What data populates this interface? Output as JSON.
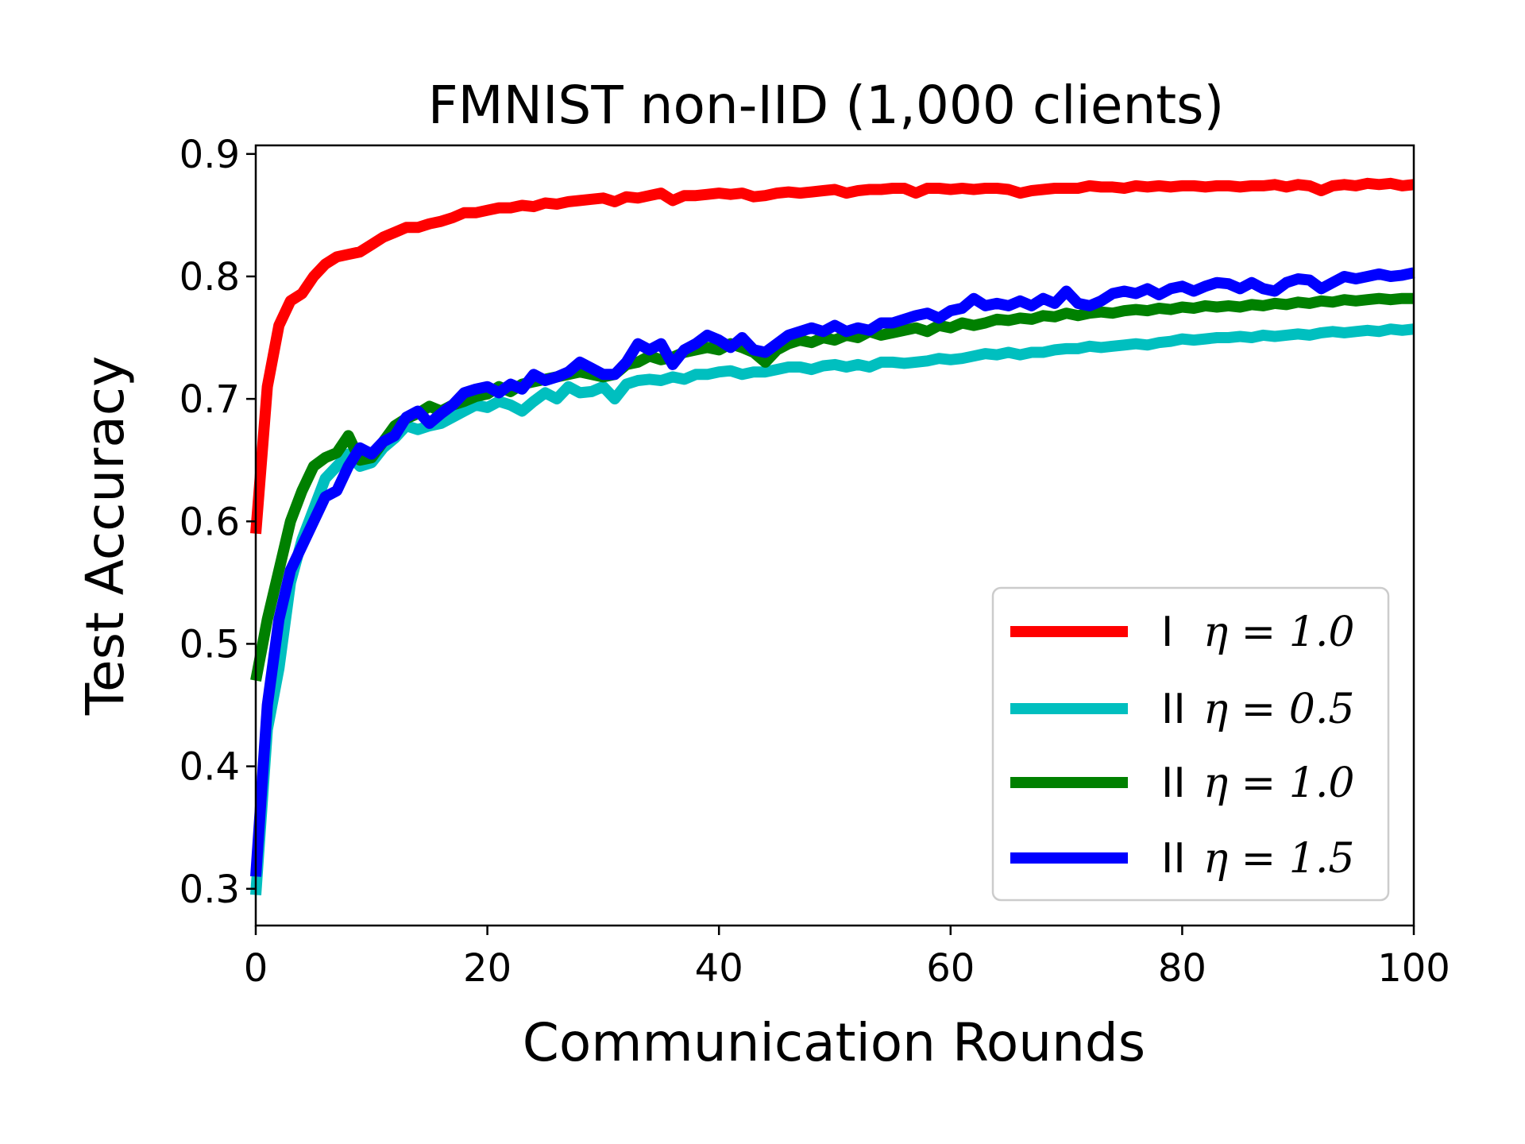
{
  "chart_data": {
    "type": "line",
    "title": "FMNIST non-IID (1,000 clients)",
    "xlabel": "Communication Rounds",
    "ylabel": "Test Accuracy",
    "xlim": [
      0,
      100
    ],
    "ylim": [
      0.27,
      0.907
    ],
    "xticks": [
      0,
      20,
      40,
      60,
      80,
      100
    ],
    "xtick_labels": [
      "0",
      "20",
      "40",
      "60",
      "80",
      "100"
    ],
    "yticks": [
      0.3,
      0.4,
      0.5,
      0.6,
      0.7,
      0.8,
      0.9
    ],
    "ytick_labels": [
      "0.3",
      "0.4",
      "0.5",
      "0.6",
      "0.7",
      "0.8",
      "0.9"
    ],
    "grid": false,
    "legend_position": "lower-right",
    "x": [
      0,
      1,
      2,
      3,
      4,
      5,
      6,
      7,
      8,
      9,
      10,
      11,
      12,
      13,
      14,
      15,
      16,
      17,
      18,
      19,
      20,
      21,
      22,
      23,
      24,
      25,
      26,
      27,
      28,
      29,
      30,
      31,
      32,
      33,
      34,
      35,
      36,
      37,
      38,
      39,
      40,
      41,
      42,
      43,
      44,
      45,
      46,
      47,
      48,
      49,
      50,
      51,
      52,
      53,
      54,
      55,
      56,
      57,
      58,
      59,
      60,
      61,
      62,
      63,
      64,
      65,
      66,
      67,
      68,
      69,
      70,
      71,
      72,
      73,
      74,
      75,
      76,
      77,
      78,
      79,
      80,
      81,
      82,
      83,
      84,
      85,
      86,
      87,
      88,
      89,
      90,
      91,
      92,
      93,
      94,
      95,
      96,
      97,
      98,
      99,
      100
    ],
    "series": [
      {
        "name_prefix": "I",
        "name_eta": "η = 1.0",
        "color": "#ff0000",
        "values": [
          0.59,
          0.71,
          0.76,
          0.78,
          0.786,
          0.8,
          0.81,
          0.816,
          0.818,
          0.82,
          0.826,
          0.832,
          0.836,
          0.84,
          0.84,
          0.843,
          0.845,
          0.848,
          0.852,
          0.852,
          0.854,
          0.856,
          0.856,
          0.858,
          0.857,
          0.86,
          0.859,
          0.861,
          0.862,
          0.863,
          0.864,
          0.861,
          0.865,
          0.864,
          0.866,
          0.868,
          0.862,
          0.866,
          0.866,
          0.867,
          0.868,
          0.867,
          0.868,
          0.865,
          0.866,
          0.868,
          0.869,
          0.868,
          0.869,
          0.87,
          0.871,
          0.868,
          0.87,
          0.871,
          0.871,
          0.872,
          0.872,
          0.868,
          0.872,
          0.872,
          0.871,
          0.872,
          0.871,
          0.872,
          0.872,
          0.871,
          0.868,
          0.87,
          0.871,
          0.872,
          0.872,
          0.872,
          0.874,
          0.873,
          0.873,
          0.872,
          0.874,
          0.873,
          0.874,
          0.873,
          0.874,
          0.874,
          0.873,
          0.874,
          0.874,
          0.873,
          0.874,
          0.874,
          0.875,
          0.873,
          0.875,
          0.874,
          0.87,
          0.874,
          0.875,
          0.874,
          0.876,
          0.875,
          0.876,
          0.874,
          0.875
        ]
      },
      {
        "name_prefix": "II",
        "name_eta": "η = 0.5",
        "color": "#00bfbf",
        "values": [
          0.295,
          0.43,
          0.48,
          0.55,
          0.585,
          0.61,
          0.635,
          0.645,
          0.655,
          0.645,
          0.648,
          0.66,
          0.668,
          0.678,
          0.675,
          0.678,
          0.68,
          0.685,
          0.69,
          0.695,
          0.693,
          0.698,
          0.695,
          0.69,
          0.698,
          0.705,
          0.7,
          0.71,
          0.705,
          0.706,
          0.71,
          0.7,
          0.712,
          0.715,
          0.716,
          0.715,
          0.718,
          0.716,
          0.72,
          0.72,
          0.722,
          0.723,
          0.72,
          0.722,
          0.722,
          0.724,
          0.726,
          0.726,
          0.724,
          0.727,
          0.728,
          0.726,
          0.728,
          0.726,
          0.73,
          0.73,
          0.729,
          0.73,
          0.731,
          0.733,
          0.732,
          0.733,
          0.735,
          0.737,
          0.736,
          0.738,
          0.736,
          0.738,
          0.738,
          0.74,
          0.741,
          0.741,
          0.743,
          0.742,
          0.743,
          0.744,
          0.745,
          0.744,
          0.746,
          0.747,
          0.749,
          0.748,
          0.749,
          0.75,
          0.75,
          0.751,
          0.75,
          0.752,
          0.751,
          0.752,
          0.753,
          0.752,
          0.754,
          0.755,
          0.754,
          0.755,
          0.756,
          0.755,
          0.757,
          0.756,
          0.757
        ]
      },
      {
        "name_prefix": "II",
        "name_eta": "η = 1.0",
        "color": "#008000",
        "values": [
          0.47,
          0.52,
          0.56,
          0.6,
          0.625,
          0.645,
          0.652,
          0.656,
          0.67,
          0.65,
          0.652,
          0.665,
          0.678,
          0.684,
          0.688,
          0.694,
          0.69,
          0.695,
          0.698,
          0.702,
          0.704,
          0.71,
          0.706,
          0.712,
          0.714,
          0.716,
          0.718,
          0.72,
          0.722,
          0.72,
          0.718,
          0.72,
          0.728,
          0.73,
          0.735,
          0.732,
          0.734,
          0.738,
          0.74,
          0.742,
          0.74,
          0.745,
          0.742,
          0.738,
          0.73,
          0.74,
          0.745,
          0.748,
          0.746,
          0.75,
          0.748,
          0.752,
          0.75,
          0.755,
          0.752,
          0.754,
          0.756,
          0.758,
          0.755,
          0.76,
          0.758,
          0.762,
          0.76,
          0.762,
          0.765,
          0.764,
          0.766,
          0.765,
          0.768,
          0.767,
          0.77,
          0.768,
          0.77,
          0.771,
          0.77,
          0.772,
          0.773,
          0.772,
          0.774,
          0.773,
          0.775,
          0.774,
          0.776,
          0.775,
          0.776,
          0.775,
          0.777,
          0.776,
          0.778,
          0.777,
          0.779,
          0.778,
          0.78,
          0.779,
          0.781,
          0.78,
          0.781,
          0.782,
          0.781,
          0.782,
          0.782
        ]
      },
      {
        "name_prefix": "II",
        "name_eta": "η = 1.5",
        "color": "#0000ff",
        "values": [
          0.31,
          0.45,
          0.52,
          0.56,
          0.58,
          0.6,
          0.62,
          0.625,
          0.645,
          0.66,
          0.655,
          0.665,
          0.67,
          0.685,
          0.69,
          0.68,
          0.688,
          0.695,
          0.705,
          0.708,
          0.71,
          0.705,
          0.712,
          0.708,
          0.72,
          0.715,
          0.718,
          0.722,
          0.73,
          0.725,
          0.72,
          0.72,
          0.73,
          0.745,
          0.74,
          0.745,
          0.728,
          0.74,
          0.745,
          0.752,
          0.748,
          0.742,
          0.75,
          0.74,
          0.738,
          0.745,
          0.752,
          0.755,
          0.758,
          0.755,
          0.76,
          0.755,
          0.758,
          0.756,
          0.762,
          0.762,
          0.765,
          0.768,
          0.77,
          0.766,
          0.772,
          0.774,
          0.782,
          0.776,
          0.778,
          0.776,
          0.78,
          0.776,
          0.782,
          0.778,
          0.788,
          0.778,
          0.776,
          0.78,
          0.786,
          0.788,
          0.786,
          0.79,
          0.785,
          0.79,
          0.792,
          0.788,
          0.792,
          0.795,
          0.794,
          0.79,
          0.795,
          0.79,
          0.788,
          0.795,
          0.798,
          0.797,
          0.79,
          0.795,
          0.8,
          0.798,
          0.8,
          0.802,
          0.8,
          0.801,
          0.803
        ]
      }
    ]
  }
}
